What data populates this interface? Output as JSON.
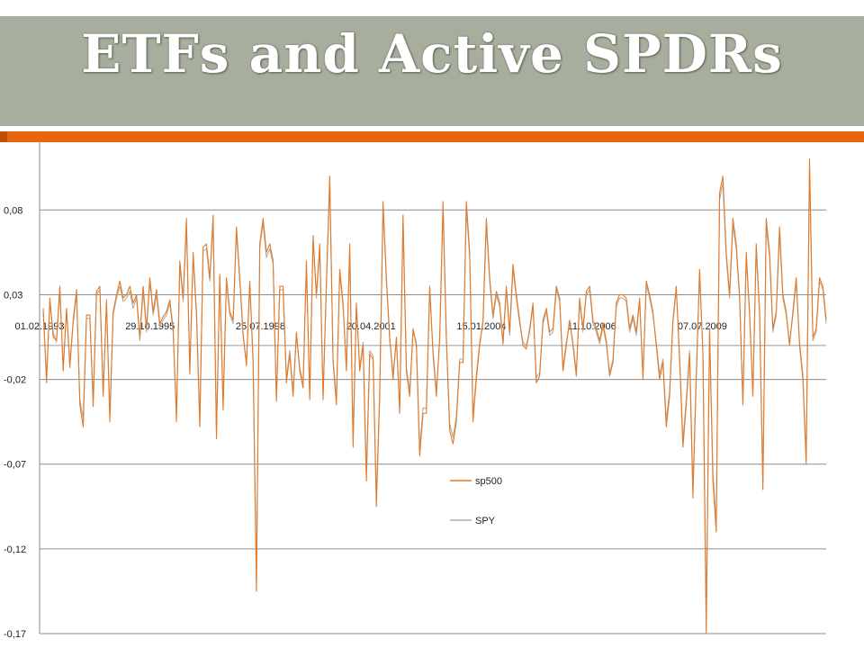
{
  "slide": {
    "title": "ETFs and Active SPDRs"
  },
  "colors": {
    "title_band": "#a7ae9e",
    "accent": "#e8660f",
    "sp500": "#e07a2c",
    "spy": "#b8ab98"
  },
  "chart_data": {
    "type": "line",
    "title": "",
    "xlabel": "",
    "ylabel": "",
    "ylim": [
      -0.17,
      0.12
    ],
    "y_ticks": [
      "0,08",
      "0,03",
      "-0,02",
      "-0,07",
      "-0,12",
      "-0,17"
    ],
    "y_tick_values": [
      0.08,
      0.03,
      -0.02,
      -0.07,
      -0.12,
      -0.17
    ],
    "x_tick_labels": [
      "01.02.1993",
      "29.10.1995",
      "25.07.1998",
      "20.04.2001",
      "15.01.2004",
      "11.10.2006",
      "07.07.2009"
    ],
    "x_start": "1993-02-01",
    "x_end": "2012-05-01",
    "legend": {
      "position": "center-right",
      "entries": [
        "sp500",
        "SPY"
      ]
    },
    "series": [
      {
        "name": "sp500",
        "values": [
          0.022,
          -0.022,
          0.028,
          0.005,
          0.003,
          0.035,
          -0.015,
          0.022,
          -0.013,
          0.015,
          0.033,
          -0.035,
          -0.048,
          0.018,
          0.018,
          -0.036,
          0.032,
          0.035,
          -0.03,
          0.027,
          -0.045,
          0.02,
          0.03,
          0.038,
          0.028,
          0.03,
          0.035,
          0.025,
          0.03,
          0.005,
          0.035,
          0.01,
          0.04,
          0.02,
          0.033,
          0.013,
          0.017,
          0.02,
          0.027,
          0.01,
          -0.045,
          0.05,
          0.028,
          0.075,
          -0.017,
          0.055,
          0.02,
          -0.048,
          0.058,
          0.06,
          0.04,
          0.077,
          -0.055,
          0.042,
          -0.038,
          0.04,
          0.02,
          0.015,
          0.07,
          0.04,
          0.007,
          -0.012,
          0.038,
          -0.01,
          -0.145,
          0.06,
          0.075,
          0.055,
          0.06,
          0.05,
          -0.033,
          0.035,
          0.035,
          -0.022,
          -0.005,
          -0.03,
          0.008,
          -0.015,
          -0.025,
          0.05,
          -0.032,
          0.065,
          0.03,
          0.06,
          -0.032,
          0.037,
          0.1,
          -0.01,
          -0.035,
          0.045,
          0.025,
          -0.015,
          0.06,
          -0.06,
          0.025,
          -0.015,
          0.0,
          -0.08,
          -0.005,
          -0.008,
          -0.095,
          -0.03,
          0.085,
          0.04,
          0.005,
          -0.02,
          0.005,
          -0.04,
          0.077,
          -0.015,
          -0.03,
          0.01,
          0.0,
          -0.065,
          -0.04,
          -0.04,
          0.035,
          -0.005,
          -0.03,
          0.005,
          0.085,
          0.005,
          -0.05,
          -0.058,
          -0.045,
          -0.01,
          -0.01,
          0.085,
          0.055,
          -0.045,
          -0.02,
          0.0,
          0.015,
          0.075,
          0.04,
          0.018,
          0.032,
          0.025,
          0.002,
          0.035,
          0.008,
          0.048,
          0.03,
          0.015,
          0.0,
          -0.002,
          0.01,
          0.025,
          -0.022,
          -0.018,
          0.015,
          0.022,
          0.008,
          0.01,
          0.035,
          0.028,
          -0.015,
          0.0,
          0.015,
          0.0,
          -0.018,
          0.028,
          0.01,
          0.032,
          0.035,
          0.015,
          0.01,
          0.003,
          0.013,
          0.003,
          -0.018,
          -0.01,
          0.025,
          0.03,
          0.03,
          0.028,
          0.01,
          0.018,
          0.008,
          0.028,
          -0.02,
          0.038,
          0.03,
          0.02,
          0.0,
          -0.02,
          -0.01,
          -0.048,
          -0.03,
          0.015,
          0.035,
          -0.008,
          -0.06,
          -0.035,
          -0.005,
          -0.09,
          -0.02,
          0.045,
          -0.005,
          -0.17,
          0.01,
          -0.08,
          -0.11,
          0.09,
          0.1,
          0.055,
          0.03,
          0.075,
          0.06,
          0.03,
          -0.035,
          0.055,
          0.02,
          -0.03,
          0.06,
          0.02,
          -0.085,
          0.075,
          0.055,
          0.01,
          0.02,
          0.07,
          0.03,
          0.02,
          0.0,
          0.02,
          0.04,
          0.0,
          -0.02,
          -0.07,
          0.11,
          0.005,
          0.01,
          0.04,
          0.035,
          0.015
        ]
      },
      {
        "name": "SPY",
        "values": [
          0.02,
          -0.018,
          0.025,
          0.008,
          0.002,
          0.032,
          -0.012,
          0.02,
          -0.01,
          0.013,
          0.03,
          -0.032,
          -0.043,
          0.016,
          0.016,
          -0.032,
          0.03,
          0.033,
          -0.027,
          0.025,
          -0.04,
          0.018,
          0.028,
          0.035,
          0.026,
          0.028,
          0.032,
          0.022,
          0.028,
          0.003,
          0.032,
          0.008,
          0.038,
          0.018,
          0.03,
          0.011,
          0.015,
          0.018,
          0.025,
          0.008,
          -0.04,
          0.047,
          0.026,
          0.071,
          -0.014,
          0.052,
          0.018,
          -0.043,
          0.056,
          0.057,
          0.038,
          0.073,
          -0.05,
          0.04,
          -0.034,
          0.038,
          0.018,
          0.013,
          0.067,
          0.038,
          0.005,
          -0.01,
          0.036,
          -0.008,
          -0.138,
          0.058,
          0.072,
          0.052,
          0.057,
          0.048,
          -0.03,
          0.033,
          0.033,
          -0.019,
          -0.003,
          -0.027,
          0.006,
          -0.013,
          -0.022,
          0.047,
          -0.029,
          0.062,
          0.028,
          0.057,
          -0.029,
          0.035,
          0.095,
          -0.008,
          -0.032,
          0.042,
          0.023,
          -0.013,
          0.057,
          -0.056,
          0.023,
          -0.013,
          0.002,
          -0.075,
          -0.003,
          -0.006,
          -0.09,
          -0.027,
          0.081,
          0.038,
          0.003,
          -0.017,
          0.003,
          -0.037,
          0.073,
          -0.013,
          -0.027,
          0.008,
          0.002,
          -0.061,
          -0.037,
          -0.037,
          0.033,
          -0.003,
          -0.027,
          0.003,
          0.081,
          0.003,
          -0.046,
          -0.054,
          -0.042,
          -0.008,
          -0.008,
          0.081,
          0.052,
          -0.042,
          -0.017,
          0.002,
          0.013,
          0.071,
          0.038,
          0.016,
          0.03,
          0.023,
          0.0,
          0.033,
          0.006,
          0.045,
          0.028,
          0.013,
          0.002,
          0.0,
          0.008,
          0.023,
          -0.019,
          -0.016,
          0.013,
          0.02,
          0.006,
          0.008,
          0.033,
          0.026,
          -0.013,
          0.002,
          0.013,
          0.002,
          -0.016,
          0.026,
          0.008,
          0.03,
          0.033,
          0.013,
          0.008,
          0.001,
          0.011,
          0.001,
          -0.016,
          -0.008,
          0.023,
          0.028,
          0.028,
          0.026,
          0.008,
          0.016,
          0.006,
          0.026,
          -0.017,
          0.036,
          0.028,
          0.018,
          0.002,
          -0.017,
          -0.008,
          -0.044,
          -0.027,
          0.013,
          0.033,
          -0.006,
          -0.056,
          -0.032,
          -0.003,
          -0.085,
          -0.017,
          0.042,
          -0.003,
          -0.16,
          0.008,
          -0.075,
          -0.104,
          0.086,
          0.096,
          0.052,
          0.028,
          0.071,
          0.057,
          0.028,
          -0.032,
          0.052,
          0.018,
          -0.027,
          0.057,
          0.018,
          -0.08,
          0.071,
          0.052,
          0.008,
          0.018,
          0.066,
          0.028,
          0.018,
          0.002,
          0.018,
          0.038,
          0.002,
          -0.017,
          -0.066,
          0.104,
          0.003,
          0.008,
          0.038,
          0.033,
          0.013
        ]
      }
    ]
  }
}
